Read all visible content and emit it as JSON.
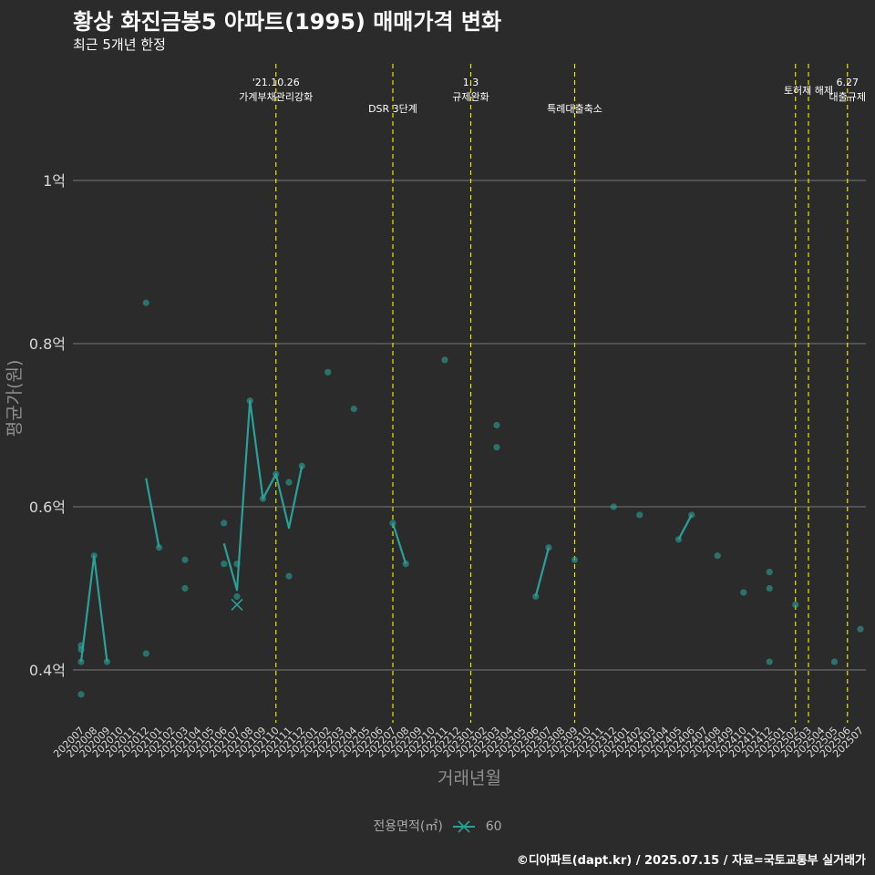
{
  "header": {
    "title": "황상 화진금봉5 아파트(1995) 매매가격 변화",
    "subtitle": "최근 5개년 한정"
  },
  "legend": {
    "title": "전용면적(㎡)",
    "item": "60"
  },
  "footer": {
    "credit": "©디아파트(dapt.kr) / 2025.07.15 / 자료=국토교통부 실거래가"
  },
  "colors": {
    "background": "#2b2b2b",
    "series": "#2aa198",
    "vline": "#e6e600",
    "grid": "#7a7a7a"
  },
  "chart_data": {
    "type": "line",
    "title": "황상 화진금봉5 아파트(1995) 매매가격 변화",
    "xlabel": "거래년월",
    "ylabel": "평균가(원)",
    "ylim": [
      0.33,
      1.15
    ],
    "yticks": [
      0.4,
      0.6,
      0.8,
      1.0
    ],
    "ytick_labels": [
      "0.4억",
      "0.6억",
      "0.8억",
      "1억"
    ],
    "categories": [
      "202007",
      "202008",
      "202009",
      "202010",
      "202011",
      "202012",
      "202101",
      "202102",
      "202103",
      "202104",
      "202105",
      "202106",
      "202107",
      "202108",
      "202109",
      "202110",
      "202111",
      "202112",
      "202201",
      "202202",
      "202203",
      "202204",
      "202205",
      "202206",
      "202207",
      "202208",
      "202209",
      "202210",
      "202211",
      "202212",
      "202301",
      "202302",
      "202303",
      "202304",
      "202305",
      "202306",
      "202307",
      "202308",
      "202309",
      "202310",
      "202311",
      "202312",
      "202401",
      "202402",
      "202403",
      "202404",
      "202405",
      "202406",
      "202407",
      "202408",
      "202409",
      "202410",
      "202411",
      "202412",
      "202501",
      "202502",
      "202503",
      "202504",
      "202505",
      "202506",
      "202507"
    ],
    "series": [
      {
        "name": "60",
        "line": [
          [
            [
              0,
              0.41
            ],
            [
              1,
              0.54
            ],
            [
              2,
              0.41
            ]
          ],
          [
            [
              5,
              0.635
            ],
            [
              6,
              0.55
            ]
          ],
          [
            [
              11,
              0.555
            ],
            [
              12,
              0.498
            ],
            [
              13,
              0.73
            ],
            [
              14,
              0.61
            ],
            [
              15,
              0.64
            ],
            [
              16,
              0.574
            ],
            [
              17,
              0.65
            ]
          ],
          [
            [
              24,
              0.58
            ],
            [
              25,
              0.53
            ]
          ],
          [
            [
              35,
              0.49
            ],
            [
              36,
              0.55
            ]
          ],
          [
            [
              46,
              0.56
            ],
            [
              47,
              0.59
            ]
          ]
        ],
        "points": [
          [
            0,
            0.43
          ],
          [
            0,
            0.425
          ],
          [
            0,
            0.41
          ],
          [
            0,
            0.37
          ],
          [
            1,
            0.54
          ],
          [
            2,
            0.41
          ],
          [
            5,
            0.85
          ],
          [
            5,
            0.42
          ],
          [
            6,
            0.55
          ],
          [
            8,
            0.535
          ],
          [
            8,
            0.5
          ],
          [
            11,
            0.58
          ],
          [
            11,
            0.53
          ],
          [
            12,
            0.53
          ],
          [
            12,
            0.49
          ],
          [
            13,
            0.73
          ],
          [
            14,
            0.61
          ],
          [
            15,
            0.64
          ],
          [
            16,
            0.63
          ],
          [
            16,
            0.515
          ],
          [
            17,
            0.65
          ],
          [
            19,
            0.765
          ],
          [
            21,
            0.72
          ],
          [
            24,
            0.58
          ],
          [
            25,
            0.53
          ],
          [
            28,
            0.78
          ],
          [
            32,
            0.7
          ],
          [
            32,
            0.673
          ],
          [
            35,
            0.49
          ],
          [
            36,
            0.55
          ],
          [
            38,
            0.535
          ],
          [
            41,
            0.6
          ],
          [
            43,
            0.59
          ],
          [
            46,
            0.56
          ],
          [
            47,
            0.59
          ],
          [
            49,
            0.54
          ],
          [
            51,
            0.495
          ],
          [
            53,
            0.52
          ],
          [
            53,
            0.5
          ],
          [
            53,
            0.41
          ],
          [
            55,
            0.48
          ],
          [
            58,
            0.41
          ],
          [
            60,
            0.45
          ]
        ],
        "cross_marker": [
          12,
          0.48
        ]
      }
    ],
    "events": [
      {
        "x": 15,
        "label": "'21.10.26\n가계부채관리강화"
      },
      {
        "x": 24,
        "label": "DSR 3단계"
      },
      {
        "x": 30,
        "label": "1.3\n규제완화"
      },
      {
        "x": 38,
        "label": "특례대출축소"
      },
      {
        "x": 55,
        "label": ""
      },
      {
        "x": 56,
        "label": "토허제 해제"
      },
      {
        "x": 59,
        "label": "6.27\n대출규제"
      }
    ]
  }
}
